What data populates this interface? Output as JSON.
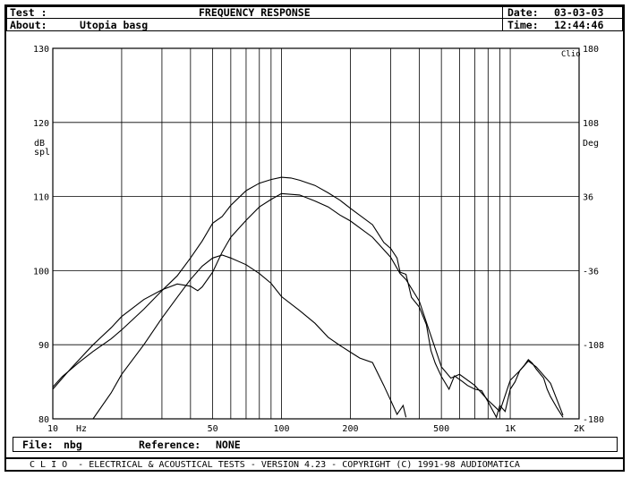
{
  "header": {
    "test_label": "Test :",
    "about_label": "About:",
    "about_value": "Utopia basg",
    "title": "FREQUENCY RESPONSE",
    "date_label": "Date:",
    "date_value": "03-03-03",
    "time_label": "Time:",
    "time_value": "12:44:46"
  },
  "file_bar": {
    "file_label": "File:",
    "file_value": "nbg",
    "reference_label": "Reference:",
    "reference_value": "NONE"
  },
  "footer": {
    "text": "C L I O  - ELECTRICAL & ACOUSTICAL TESTS - VERSION 4.23 - COPYRIGHT (C) 1991-98 AUDIOMATICA"
  },
  "chart_data": {
    "type": "line",
    "title": "FREQUENCY RESPONSE",
    "corner_label": "Clio",
    "xlabel": "Hz",
    "ylabel": "dB spl",
    "ylabel_right": "Deg",
    "x_scale": "log",
    "xlim": [
      10,
      2000
    ],
    "ylim": [
      80,
      130
    ],
    "ylim_right": [
      -180,
      180
    ],
    "grid": true,
    "x_tick_labels": [
      {
        "value": 10,
        "label": "10"
      },
      {
        "value": 50,
        "label": "50"
      },
      {
        "value": 100,
        "label": "100"
      },
      {
        "value": 200,
        "label": "200"
      },
      {
        "value": 500,
        "label": "500"
      },
      {
        "value": 1000,
        "label": "1K"
      },
      {
        "value": 2000,
        "label": "2K"
      }
    ],
    "x_gridlines": [
      20,
      30,
      40,
      50,
      60,
      70,
      80,
      90,
      100,
      200,
      300,
      400,
      500,
      600,
      700,
      800,
      900,
      1000
    ],
    "y_ticks": [
      80,
      90,
      100,
      110,
      120,
      130
    ],
    "y_right_ticks": [
      "-180",
      "-108",
      "-36",
      "36",
      "108",
      "180"
    ],
    "series": [
      {
        "x": [
          10,
          11,
          13,
          15,
          18,
          20,
          25,
          30,
          35,
          40,
          45,
          50,
          55,
          60,
          70,
          80,
          90,
          100,
          110,
          120,
          140,
          160,
          180,
          200,
          250,
          280,
          300,
          320,
          330,
          350,
          370,
          400,
          430,
          450,
          470,
          500,
          540,
          570,
          620,
          650,
          700,
          750,
          800,
          870,
          900,
          950,
          1000,
          1050,
          1100,
          1150,
          1200,
          1250,
          1300,
          1400,
          1450,
          1500,
          1600,
          1700
        ],
        "values": [
          84.3,
          85.7,
          87.6,
          89.1,
          90.8,
          92,
          94.8,
          97.3,
          99.3,
          101.7,
          104,
          106.4,
          107.3,
          108.8,
          110.8,
          111.8,
          112.3,
          112.6,
          112.5,
          112.2,
          111.5,
          110.5,
          109.5,
          108.4,
          106.2,
          103.8,
          103,
          101.7,
          99.8,
          99.5,
          96.4,
          95.1,
          92.7,
          89.2,
          87.5,
          85.7,
          84,
          85.8,
          85,
          84.5,
          84,
          83.8,
          82.3,
          80.2,
          81.8,
          81,
          84,
          85,
          86.5,
          87.2,
          88,
          87.5,
          86.7,
          85.5,
          84,
          83,
          81.5,
          80.2
        ]
      },
      {
        "x": [
          10,
          12,
          15,
          18,
          20,
          25,
          30,
          35,
          40,
          43,
          45,
          50,
          55,
          60,
          70,
          80,
          90,
          100,
          120,
          140,
          160,
          180,
          200,
          250,
          300,
          330,
          350,
          400,
          450,
          500,
          550,
          600,
          700,
          800,
          900,
          1000,
          1100,
          1200,
          1300,
          1500,
          1700
        ],
        "values": [
          84,
          86.8,
          90,
          92.3,
          93.8,
          96.1,
          97.4,
          98.2,
          97.9,
          97.3,
          97.8,
          99.8,
          102.5,
          104.5,
          106.8,
          108.6,
          109.6,
          110.4,
          110.2,
          109.4,
          108.6,
          107.5,
          106.7,
          104.5,
          101.8,
          99.6,
          98.8,
          95.9,
          91.2,
          87,
          85.5,
          86,
          84.5,
          82.5,
          81,
          85.2,
          86.5,
          87.8,
          87,
          84.8,
          80.5
        ]
      },
      {
        "x": [
          15,
          18,
          20,
          25,
          30,
          35,
          40,
          45,
          50,
          55,
          60,
          70,
          80,
          90,
          100,
          120,
          140,
          160,
          180,
          200,
          220,
          250,
          280,
          300,
          320,
          340,
          350
        ],
        "values": [
          80,
          83.5,
          86,
          90,
          93.6,
          96.4,
          98.8,
          100.6,
          101.7,
          102.1,
          101.7,
          100.8,
          99.6,
          98.3,
          96.5,
          94.6,
          92.9,
          91,
          89.9,
          89,
          88.2,
          87.6,
          84.5,
          82.5,
          80.6,
          81.8,
          80.2
        ]
      }
    ]
  }
}
